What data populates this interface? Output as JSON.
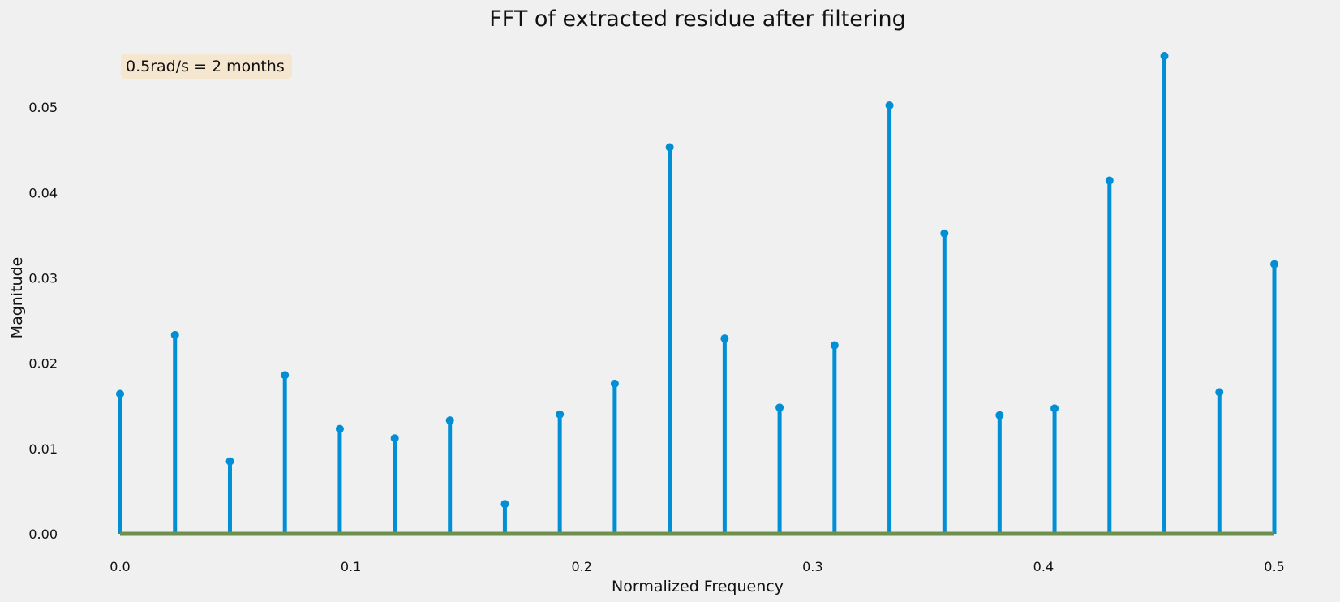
{
  "chart_data": {
    "type": "stem",
    "title": "FFT of extracted residue after filtering",
    "xlabel": "Normalized Frequency",
    "ylabel": "Magnitude",
    "xlim": [
      0.0,
      0.5
    ],
    "ylim": [
      0.0,
      0.056
    ],
    "xticks": [
      "0.0",
      "0.1",
      "0.2",
      "0.3",
      "0.4",
      "0.5"
    ],
    "yticks": [
      "0.00",
      "0.01",
      "0.02",
      "0.03",
      "0.04",
      "0.05"
    ],
    "grid": false,
    "annotation": "0.5rad/s = 2 months",
    "colors": {
      "stem": "#008fd5",
      "baseline": "#6d904f",
      "annotation_box": "#f5e6d0"
    },
    "x": [
      0.0,
      0.0238,
      0.0476,
      0.0714,
      0.0952,
      0.119,
      0.1429,
      0.1667,
      0.1905,
      0.2143,
      0.2381,
      0.2619,
      0.2857,
      0.3095,
      0.3333,
      0.3571,
      0.381,
      0.4048,
      0.4286,
      0.4524,
      0.4762,
      0.5
    ],
    "values": [
      0.0164,
      0.0233,
      0.0085,
      0.0186,
      0.0123,
      0.0112,
      0.0133,
      0.0035,
      0.014,
      0.0176,
      0.0453,
      0.0229,
      0.0148,
      0.0221,
      0.0502,
      0.0352,
      0.0139,
      0.0147,
      0.0414,
      0.056,
      0.0166,
      0.0316
    ]
  }
}
